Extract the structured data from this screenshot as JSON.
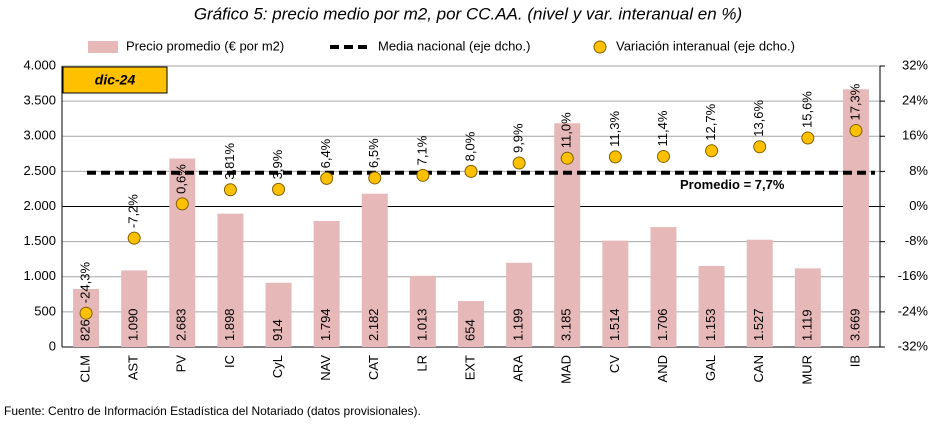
{
  "chart_data": {
    "type": "bar",
    "title": "Gráfico 5: precio medio por m2, por CC.AA. (nivel y var. interanual en %)",
    "tag": "dic-24",
    "source": "Fuente: Centro de Información Estadística del Notariado (datos provisionales).",
    "categories": [
      "CLM",
      "AST",
      "PV",
      "IC",
      "CyL",
      "NAV",
      "CAT",
      "LR",
      "EXT",
      "ARA",
      "MAD",
      "CV",
      "AND",
      "GAL",
      "CAN",
      "MUR",
      "IB"
    ],
    "series": [
      {
        "name": "Precio promedio (€ por m2)",
        "type": "bar",
        "color": "#e6b8b7",
        "values": [
          826,
          1090,
          2683,
          1898,
          914,
          1794,
          2182,
          1013,
          654,
          1199,
          3185,
          1514,
          1706,
          1153,
          1527,
          1119,
          3669
        ],
        "value_labels": [
          "826",
          "1.090",
          "2.683",
          "1.898",
          "914",
          "1.794",
          "2.182",
          "1.013",
          "654",
          "1.199",
          "3.185",
          "1.514",
          "1.706",
          "1.153",
          "1.527",
          "1.119",
          "3.669"
        ]
      },
      {
        "name": "Variación interanual (eje dcho.)",
        "type": "scatter",
        "axis": "y2",
        "color": "#ffc000",
        "values": [
          -24.3,
          -7.2,
          0.6,
          3.81,
          3.9,
          6.4,
          6.5,
          7.1,
          8.0,
          9.9,
          11.0,
          11.3,
          11.4,
          12.7,
          13.6,
          15.6,
          17.3
        ],
        "value_labels": [
          "-24,3%",
          "-7,2%",
          "0,6%",
          "3,81%",
          "3,9%",
          "6,4%",
          "6,5%",
          "7,1%",
          "8,0%",
          "9,9%",
          "11,0%",
          "11,3%",
          "11,4%",
          "12,7%",
          "13,6%",
          "15,6%",
          "17,3%"
        ]
      }
    ],
    "reference_line": {
      "name": "Media nacional (eje dcho.)",
      "axis": "y2",
      "value": 7.7,
      "label": "Promedio = 7,7%",
      "color": "#000000"
    },
    "ylim": [
      0,
      4000
    ],
    "yticks": [
      {
        "value": 0,
        "label": "0"
      },
      {
        "value": 500,
        "label": "500"
      },
      {
        "value": 1000,
        "label": "1.000"
      },
      {
        "value": 1500,
        "label": "1.500"
      },
      {
        "value": 2000,
        "label": "2.000"
      },
      {
        "value": 2500,
        "label": "2.500"
      },
      {
        "value": 3000,
        "label": "3.000"
      },
      {
        "value": 3500,
        "label": "3.500"
      },
      {
        "value": 4000,
        "label": "4.000"
      }
    ],
    "y2lim": [
      -32,
      32
    ],
    "y2ticks": [
      {
        "value": -32,
        "label": "-32%"
      },
      {
        "value": -24,
        "label": "-24%"
      },
      {
        "value": -16,
        "label": "-16%"
      },
      {
        "value": -8,
        "label": "-8%"
      },
      {
        "value": 0,
        "label": "0%"
      },
      {
        "value": 8,
        "label": "8%"
      },
      {
        "value": 16,
        "label": "16%"
      },
      {
        "value": 24,
        "label": "24%"
      },
      {
        "value": 32,
        "label": "32%"
      }
    ],
    "grid": true
  }
}
